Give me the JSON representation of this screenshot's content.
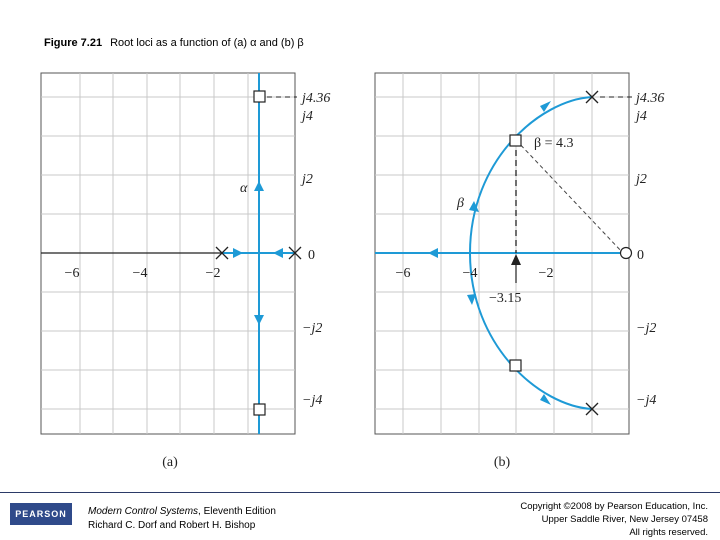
{
  "figure": {
    "number": "Figure 7.21",
    "caption": "Root loci as a function of (a) α and (b) β"
  },
  "panel_a": {
    "caption": "(a)",
    "x_ticks": [
      "−6",
      "−4",
      "−2",
      "0"
    ],
    "y_ticks_pos": [
      "j4.36",
      "j4",
      "j2"
    ],
    "y_ticks_neg": [
      "−j2",
      "−j4"
    ],
    "param_label": "α"
  },
  "panel_b": {
    "caption": "(b)",
    "x_ticks": [
      "−6",
      "−4",
      "−2",
      "0"
    ],
    "y_ticks_pos": [
      "j4.36",
      "j4",
      "j2"
    ],
    "y_ticks_neg": [
      "−j2",
      "−j4"
    ],
    "param_label": "β",
    "gain_label": "β = 4.3",
    "crossing_label": "−3.15"
  },
  "footer": {
    "logo_text": "PEARSON",
    "book_title": "Modern Control Systems",
    "book_edition": ", Eleventh Edition",
    "book_authors": "Richard C. Dorf and Robert H. Bishop",
    "copyright_line1": "Copyright ©2008 by Pearson Education, Inc.",
    "copyright_line2": "Upper Saddle River, New Jersey 07458",
    "copyright_line3": "All rights reserved."
  },
  "colors": {
    "locus": "#1e9ad6",
    "grid": "#c8c8c8",
    "axis": "#222222",
    "brand": "#2f4a8a"
  }
}
